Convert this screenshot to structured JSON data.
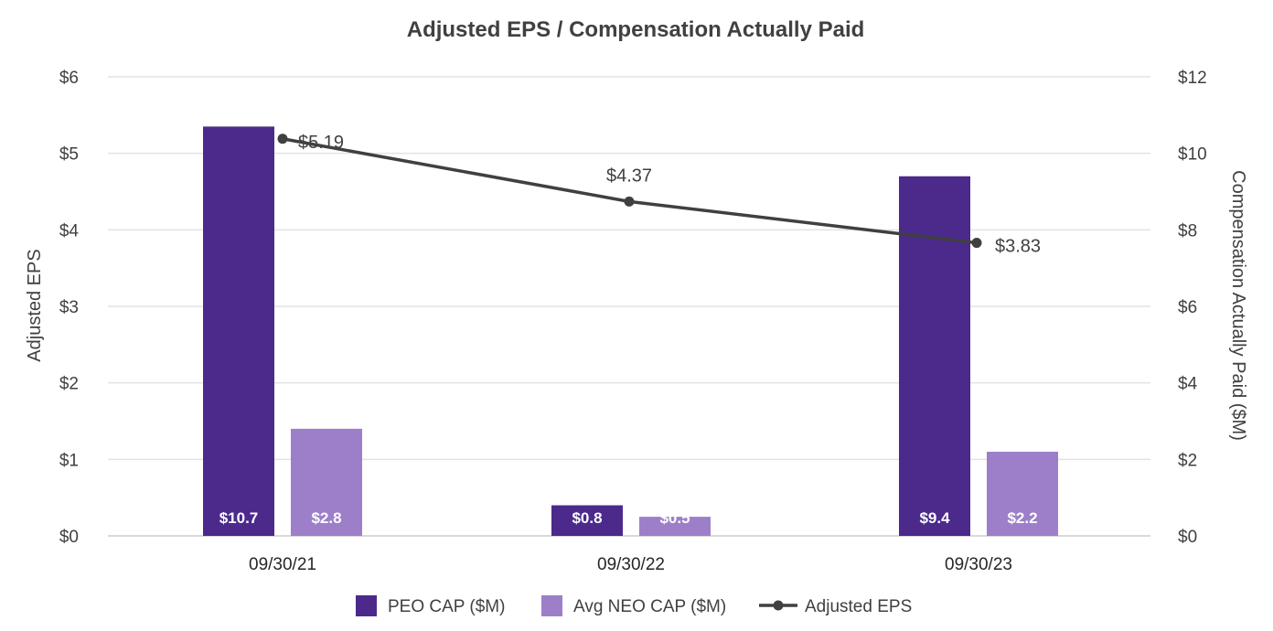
{
  "chart_data": {
    "type": "bar",
    "title": "Adjusted EPS / Compensation Actually Paid",
    "categories": [
      "09/30/21",
      "09/30/22",
      "09/30/23"
    ],
    "y_left": {
      "label": "Adjusted EPS",
      "range": [
        0,
        6
      ],
      "ticks": [
        "$0",
        "$1",
        "$2",
        "$3",
        "$4",
        "$5",
        "$6"
      ]
    },
    "y_right": {
      "label": "Compensation Actually Paid ($M)",
      "range": [
        0,
        12
      ],
      "ticks": [
        "$0",
        "$2",
        "$4",
        "$6",
        "$8",
        "$10",
        "$12"
      ]
    },
    "series": [
      {
        "name": "PEO CAP ($M)",
        "type": "bar",
        "axis": "right",
        "color": "#4b2a8c",
        "values": [
          10.7,
          0.8,
          9.4
        ],
        "labels": [
          "$10.7",
          "$0.8",
          "$9.4"
        ]
      },
      {
        "name": "Avg NEO CAP ($M)",
        "type": "bar",
        "axis": "right",
        "color": "#9d7fc9",
        "values": [
          2.8,
          0.5,
          2.2
        ],
        "labels": [
          "$2.8",
          "$0.5",
          "$2.2"
        ]
      },
      {
        "name": "Adjusted EPS",
        "type": "line",
        "axis": "left",
        "color": "#404040",
        "values": [
          5.19,
          4.37,
          3.83
        ],
        "labels": [
          "$5.19",
          "$4.37",
          "$3.83"
        ]
      }
    ],
    "grid": true,
    "legend": "bottom-center"
  }
}
